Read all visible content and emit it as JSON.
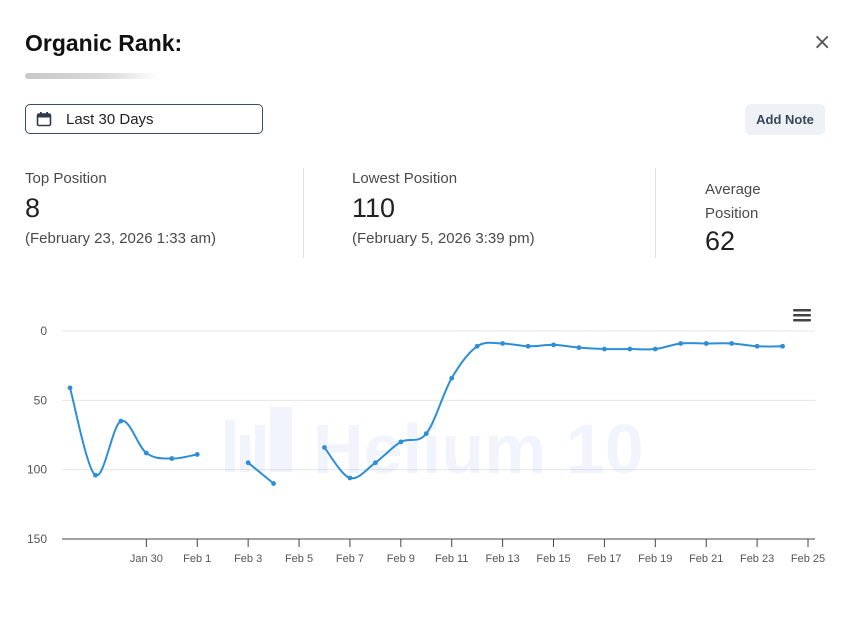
{
  "header": {
    "title": "Organic Rank:",
    "close_label": "×"
  },
  "toolbar": {
    "date_range_label": "Last 30 Days",
    "add_note_label": "Add Note"
  },
  "stats": {
    "top": {
      "label": "Top Position",
      "value": "8",
      "date": "(February 23, 2026 1:33 am)"
    },
    "lowest": {
      "label": "Lowest Position",
      "value": "110",
      "date": "(February 5, 2026 3:39 pm)"
    },
    "average": {
      "label_line1": "Average",
      "label_line2": "Position",
      "value": "62"
    }
  },
  "chart_data": {
    "type": "line",
    "title": "",
    "xlabel": "",
    "ylabel": "",
    "y_reversed": true,
    "ylim": [
      0,
      150
    ],
    "y_ticks": [
      0,
      50,
      100,
      150
    ],
    "xlim": [
      "2026-01-27",
      "2026-02-25"
    ],
    "x_ticks": [
      "Jan 30",
      "Feb 1",
      "Feb 3",
      "Feb 5",
      "Feb 7",
      "Feb 9",
      "Feb 11",
      "Feb 13",
      "Feb 15",
      "Feb 17",
      "Feb 19",
      "Feb 21",
      "Feb 23",
      "Feb 25"
    ],
    "grid": true,
    "color": "#2c8ed6",
    "watermark": "Helium 10",
    "menu_icon": "hamburger-menu-icon",
    "segments": [
      [
        {
          "x": "2026-01-27",
          "y": 41
        },
        {
          "x": "2026-01-28",
          "y": 104
        },
        {
          "x": "2026-01-29",
          "y": 65
        },
        {
          "x": "2026-01-30",
          "y": 88
        },
        {
          "x": "2026-01-31",
          "y": 92
        },
        {
          "x": "2026-02-01",
          "y": 89
        }
      ],
      [
        {
          "x": "2026-02-03",
          "y": 95
        },
        {
          "x": "2026-02-04",
          "y": 110
        }
      ],
      [
        {
          "x": "2026-02-06",
          "y": 84
        },
        {
          "x": "2026-02-07",
          "y": 106
        },
        {
          "x": "2026-02-08",
          "y": 95
        },
        {
          "x": "2026-02-09",
          "y": 80
        },
        {
          "x": "2026-02-10",
          "y": 74
        },
        {
          "x": "2026-02-11",
          "y": 34
        },
        {
          "x": "2026-02-12",
          "y": 11
        },
        {
          "x": "2026-02-13",
          "y": 9
        },
        {
          "x": "2026-02-14",
          "y": 11
        },
        {
          "x": "2026-02-15",
          "y": 10
        },
        {
          "x": "2026-02-16",
          "y": 12
        },
        {
          "x": "2026-02-17",
          "y": 13
        },
        {
          "x": "2026-02-18",
          "y": 13
        },
        {
          "x": "2026-02-19",
          "y": 13
        },
        {
          "x": "2026-02-20",
          "y": 9
        },
        {
          "x": "2026-02-21",
          "y": 9
        },
        {
          "x": "2026-02-22",
          "y": 9
        },
        {
          "x": "2026-02-23",
          "y": 11
        },
        {
          "x": "2026-02-24",
          "y": 11
        }
      ]
    ]
  }
}
